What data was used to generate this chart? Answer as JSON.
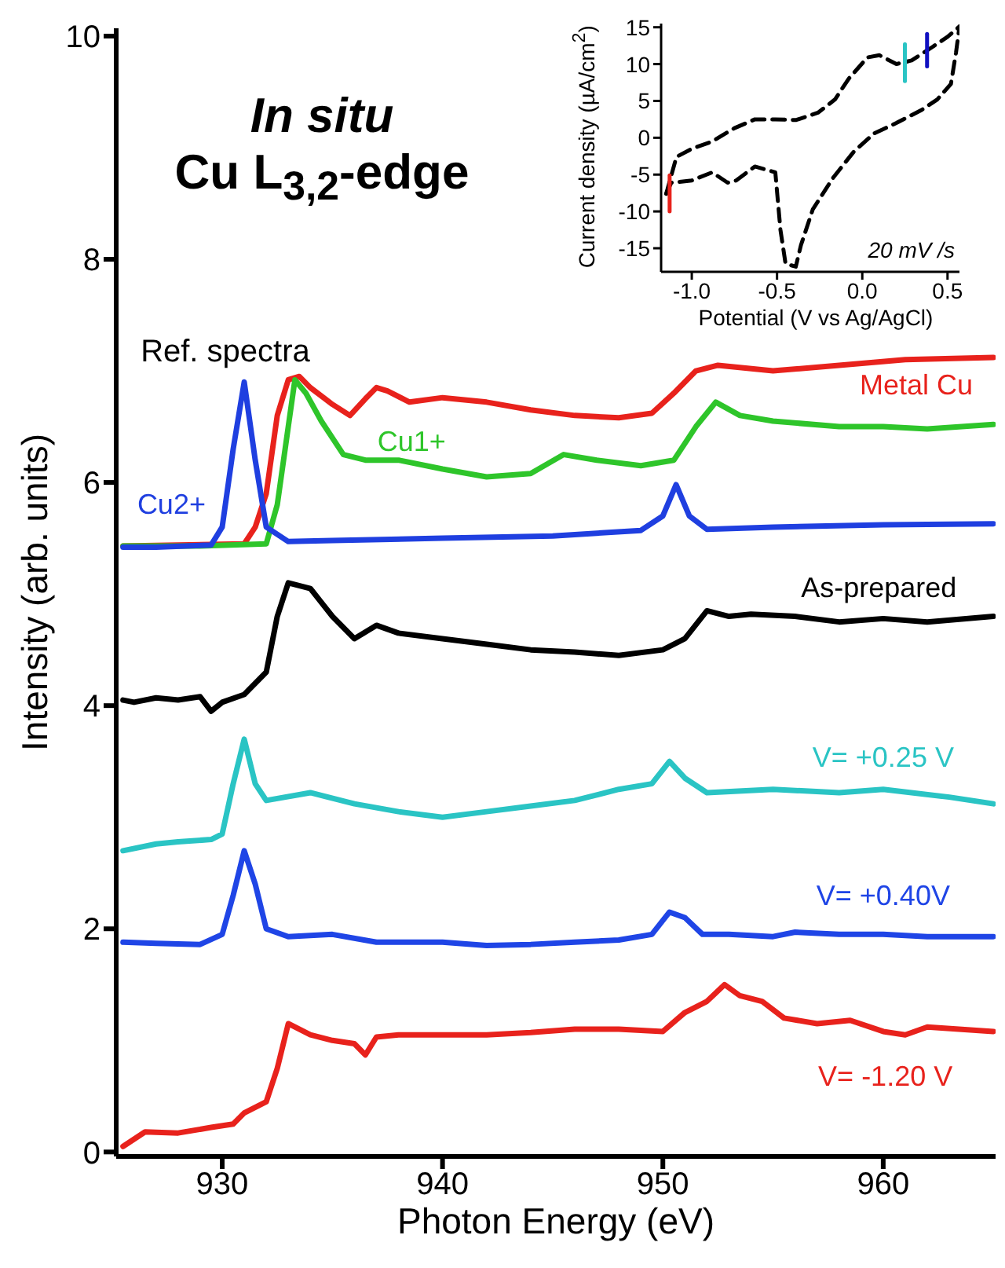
{
  "chart_data": [
    {
      "type": "line",
      "title": "In situ",
      "subtitle": "Cu L$_{3,2}$-edge",
      "xlabel": "Photon Energy (eV)",
      "ylabel": "Intensity (arb. units)",
      "xlim": [
        925.19,
        965.1
      ],
      "ylim": [
        -0.04,
        10.07
      ],
      "xticks": [
        930,
        940,
        950,
        960
      ],
      "yticks": [
        0,
        2,
        4,
        6,
        8,
        10
      ],
      "annotations": [
        "Ref. spectra"
      ],
      "series": [
        {
          "name": "Metal Cu",
          "color": "#e8221c",
          "x": [
            925.5,
            928,
            931,
            931.5,
            932,
            932.5,
            933,
            933.5,
            934,
            935,
            935.8,
            936.5,
            937,
            937.5,
            938.5,
            940,
            942,
            944,
            946,
            948,
            949.5,
            950.5,
            951.5,
            952.5,
            955,
            958,
            961,
            965
          ],
          "values": [
            5.43,
            5.44,
            5.45,
            5.6,
            5.9,
            6.6,
            6.92,
            6.95,
            6.85,
            6.7,
            6.6,
            6.75,
            6.85,
            6.82,
            6.72,
            6.76,
            6.72,
            6.65,
            6.6,
            6.58,
            6.62,
            6.8,
            7.0,
            7.05,
            7.0,
            7.05,
            7.1,
            7.12
          ]
        },
        {
          "name": "Cu1+",
          "color": "#2ec52a",
          "x": [
            925.5,
            929,
            932,
            932.5,
            933,
            933.3,
            933.8,
            934.5,
            935.5,
            936.5,
            938,
            940,
            942,
            944,
            945.5,
            947,
            949,
            950.5,
            951.5,
            952.4,
            953.5,
            955,
            958,
            960,
            962,
            965
          ],
          "values": [
            5.43,
            5.43,
            5.45,
            5.8,
            6.5,
            6.92,
            6.8,
            6.55,
            6.25,
            6.2,
            6.2,
            6.12,
            6.05,
            6.08,
            6.25,
            6.2,
            6.15,
            6.2,
            6.5,
            6.72,
            6.6,
            6.55,
            6.5,
            6.5,
            6.48,
            6.52
          ]
        },
        {
          "name": "Cu2+",
          "color": "#1f3fe0",
          "x": [
            925.5,
            927,
            929.5,
            930,
            930.5,
            931,
            931.5,
            932,
            933,
            935,
            940,
            945,
            949,
            950,
            950.6,
            951.2,
            952,
            955,
            960,
            965
          ],
          "values": [
            5.42,
            5.42,
            5.44,
            5.6,
            6.3,
            6.9,
            6.2,
            5.6,
            5.47,
            5.48,
            5.5,
            5.52,
            5.57,
            5.7,
            5.98,
            5.7,
            5.58,
            5.6,
            5.62,
            5.63
          ]
        },
        {
          "name": "As-prepared",
          "color": "#000000",
          "x": [
            925.5,
            926,
            927,
            928,
            929,
            929.5,
            930,
            931,
            932,
            932.5,
            933,
            934,
            935,
            936,
            937,
            938,
            940,
            942,
            944,
            946,
            948,
            950,
            951,
            952,
            953,
            954,
            956,
            958,
            960,
            962,
            965
          ],
          "values": [
            4.05,
            4.03,
            4.07,
            4.05,
            4.08,
            3.95,
            4.03,
            4.1,
            4.3,
            4.8,
            5.1,
            5.05,
            4.8,
            4.6,
            4.72,
            4.65,
            4.6,
            4.55,
            4.5,
            4.48,
            4.45,
            4.5,
            4.6,
            4.85,
            4.8,
            4.82,
            4.8,
            4.75,
            4.78,
            4.75,
            4.8
          ]
        },
        {
          "name": "V= +0.25 V",
          "color": "#2ac4c4",
          "x": [
            925.5,
            927,
            928,
            929.5,
            930,
            930.5,
            931,
            931.5,
            932,
            934,
            936,
            938,
            940,
            942,
            944,
            946,
            948,
            949.5,
            950.3,
            951,
            952,
            955,
            958,
            960,
            963,
            965
          ],
          "values": [
            2.7,
            2.76,
            2.78,
            2.8,
            2.85,
            3.3,
            3.7,
            3.3,
            3.15,
            3.22,
            3.12,
            3.05,
            3.0,
            3.05,
            3.1,
            3.15,
            3.25,
            3.3,
            3.5,
            3.35,
            3.22,
            3.25,
            3.22,
            3.25,
            3.18,
            3.12
          ]
        },
        {
          "name": "V= +0.40V",
          "color": "#1f45e6",
          "x": [
            925.5,
            927,
            929,
            930,
            930.5,
            931,
            931.5,
            932,
            933,
            935,
            937,
            940,
            942,
            944,
            946,
            948,
            949.5,
            950.3,
            951,
            951.8,
            953,
            955,
            956,
            958,
            960,
            962,
            965
          ],
          "values": [
            1.88,
            1.87,
            1.86,
            1.95,
            2.3,
            2.7,
            2.4,
            2.0,
            1.93,
            1.95,
            1.88,
            1.88,
            1.85,
            1.86,
            1.88,
            1.9,
            1.95,
            2.15,
            2.1,
            1.95,
            1.95,
            1.93,
            1.97,
            1.95,
            1.95,
            1.93,
            1.93
          ]
        },
        {
          "name": "V= -1.20 V",
          "color": "#e8221c",
          "x": [
            925.5,
            926.5,
            928,
            929.5,
            930.5,
            931,
            932,
            932.5,
            933,
            934,
            935,
            936,
            936.5,
            937,
            938,
            940,
            942,
            944,
            946,
            948,
            950,
            951,
            952,
            952.8,
            953.5,
            954.5,
            955.5,
            957,
            958.5,
            960,
            961,
            962,
            965
          ],
          "values": [
            0.05,
            0.18,
            0.17,
            0.22,
            0.25,
            0.35,
            0.45,
            0.75,
            1.15,
            1.05,
            1.0,
            0.97,
            0.87,
            1.03,
            1.05,
            1.05,
            1.05,
            1.07,
            1.1,
            1.1,
            1.08,
            1.25,
            1.35,
            1.5,
            1.4,
            1.35,
            1.2,
            1.15,
            1.18,
            1.08,
            1.05,
            1.12,
            1.08
          ]
        }
      ]
    },
    {
      "type": "line",
      "xlabel": "Potential (V vs Ag/AgCl)",
      "ylabel": "Current density (µA/cm$^{2}$)",
      "xlim": [
        -1.18,
        0.57
      ],
      "ylim": [
        -18.2,
        15.5
      ],
      "xticks": [
        {
          "value": -1.0,
          "label": "-1.0"
        },
        {
          "value": -0.5,
          "label": "-0.5"
        },
        {
          "value": 0,
          "label": "0.0"
        },
        {
          "value": 0.5,
          "label": "0.5"
        }
      ],
      "yticks": [
        -15,
        -10,
        -5,
        0,
        5,
        10,
        15
      ],
      "annotations": [
        "20 mV /s"
      ],
      "series": [
        {
          "color": "#000000",
          "line_style": "dashed",
          "x": [
            -1.15,
            -1.09,
            -1.0,
            -0.88,
            -0.75,
            -0.63,
            -0.51,
            -0.39,
            -0.26,
            -0.16,
            -0.08,
            0.03,
            0.1,
            0.2,
            0.29,
            0.41,
            0.5,
            0.57
          ],
          "values": [
            -7.6,
            -2.6,
            -1.5,
            -0.5,
            1.3,
            2.5,
            2.5,
            2.4,
            3.4,
            5.2,
            8.0,
            10.9,
            11.2,
            10.0,
            10.5,
            12.3,
            13.7,
            15.1
          ]
        },
        {
          "color": "#000000",
          "line_style": "dashed",
          "x": [
            -1.15,
            -1.12,
            -1.0,
            -0.88,
            -0.79,
            -0.74,
            -0.63,
            -0.51,
            -0.48,
            -0.45,
            -0.39,
            -0.36,
            -0.29,
            -0.17,
            -0.05,
            0.07,
            0.2,
            0.35,
            0.44,
            0.52,
            0.55,
            0.57
          ],
          "values": [
            -7.6,
            -6.1,
            -5.8,
            -4.7,
            -6.1,
            -5.8,
            -3.9,
            -4.7,
            -12.5,
            -17.1,
            -17.5,
            -14.6,
            -9.7,
            -5.4,
            -1.9,
            0.6,
            2.0,
            3.8,
            5.2,
            7.3,
            11.6,
            15.1
          ]
        },
        {
          "color": "#e8221c",
          "line_style": "solid",
          "x": [
            -1.13,
            -1.13
          ],
          "values": [
            -5.1,
            -10.0
          ]
        },
        {
          "color": "#2ac4c4",
          "line_style": "solid",
          "x": [
            0.25,
            0.25
          ],
          "values": [
            12.7,
            7.7
          ]
        },
        {
          "color": "#1010c0",
          "line_style": "solid",
          "x": [
            0.38,
            0.38
          ],
          "values": [
            14.1,
            9.7
          ]
        }
      ]
    }
  ]
}
